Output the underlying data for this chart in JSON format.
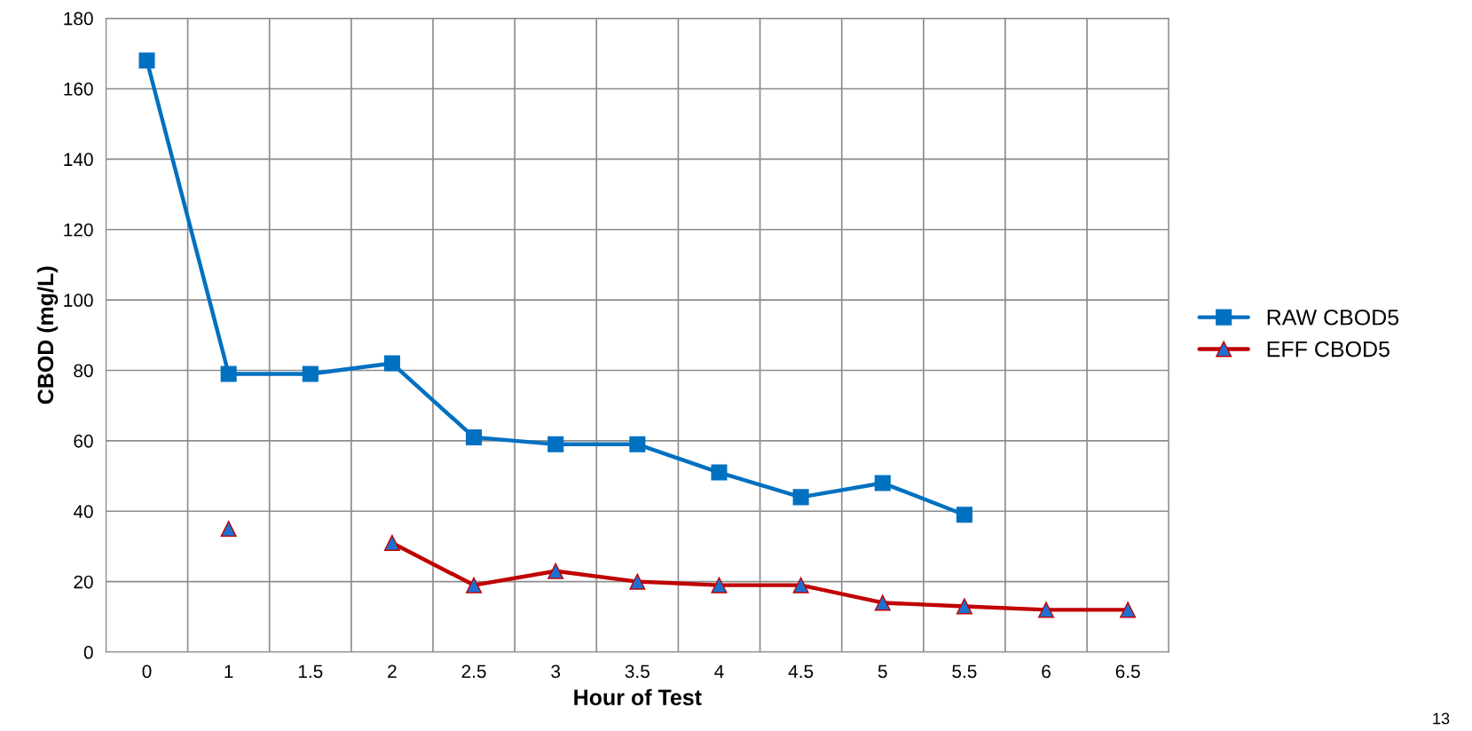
{
  "chart_data": {
    "type": "line",
    "xlabel": "Hour of Test",
    "ylabel": "CBOD (mg/L)",
    "categories": [
      "0",
      "1",
      "1.5",
      "2",
      "2.5",
      "3",
      "3.5",
      "4",
      "4.5",
      "5",
      "5.5",
      "6",
      "6.5"
    ],
    "series": [
      {
        "name": "RAW CBOD5",
        "color": "#0070c0",
        "marker": "square",
        "values": [
          168,
          79,
          79,
          82,
          61,
          59,
          59,
          51,
          44,
          48,
          39,
          null,
          null
        ]
      },
      {
        "name": "EFF CBOD5",
        "color": "#c00000",
        "marker": "triangle",
        "values": [
          null,
          35,
          null,
          31,
          19,
          23,
          20,
          19,
          19,
          14,
          13,
          12,
          12
        ]
      }
    ],
    "ylim": [
      0,
      180
    ],
    "yticks": [
      0,
      20,
      40,
      60,
      80,
      100,
      120,
      140,
      160,
      180
    ],
    "grid": true,
    "legend": "right",
    "line_style": "solid",
    "annotations": [
      "13"
    ]
  }
}
